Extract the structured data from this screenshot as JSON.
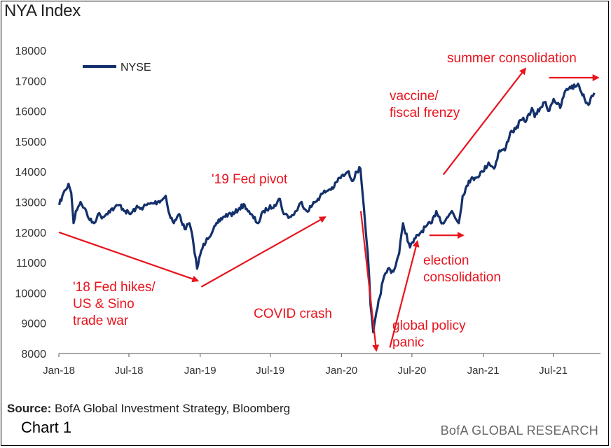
{
  "page": {
    "title": "NYA Index",
    "source_label": "Source:",
    "source_text": "BofA Global Investment Strategy, Bloomberg",
    "chart_number": "Chart 1",
    "brand": "BofA GLOBAL RESEARCH"
  },
  "chart_data": {
    "type": "line",
    "title": "NYA Index",
    "xlabel": "",
    "ylabel": "",
    "ylim": [
      8000,
      18000
    ],
    "xlim": [
      "2018-01-01",
      "2021-10-31"
    ],
    "yticks": [
      8000,
      9000,
      10000,
      11000,
      12000,
      13000,
      14000,
      15000,
      16000,
      17000,
      18000
    ],
    "xticks": [
      {
        "date": "2018-01-01",
        "label": "Jan-18"
      },
      {
        "date": "2018-07-01",
        "label": "Jul-18"
      },
      {
        "date": "2019-01-01",
        "label": "Jan-19"
      },
      {
        "date": "2019-07-01",
        "label": "Jul-19"
      },
      {
        "date": "2020-01-01",
        "label": "Jan-20"
      },
      {
        "date": "2020-07-01",
        "label": "Jul-20"
      },
      {
        "date": "2021-01-01",
        "label": "Jan-21"
      },
      {
        "date": "2021-07-01",
        "label": "Jul-21"
      }
    ],
    "grid": false,
    "legend": {
      "position": "top-left",
      "entries": [
        "NYSE"
      ]
    },
    "colors": {
      "line": "#14306b",
      "annotation": "#e8141e"
    },
    "series": [
      {
        "name": "NYSE",
        "points": [
          [
            "2018-01-02",
            12900
          ],
          [
            "2018-01-10",
            13200
          ],
          [
            "2018-01-19",
            13400
          ],
          [
            "2018-01-26",
            13600
          ],
          [
            "2018-02-02",
            13300
          ],
          [
            "2018-02-08",
            12300
          ],
          [
            "2018-02-14",
            12700
          ],
          [
            "2018-02-26",
            13000
          ],
          [
            "2018-03-08",
            12800
          ],
          [
            "2018-03-22",
            12400
          ],
          [
            "2018-04-02",
            12300
          ],
          [
            "2018-04-12",
            12600
          ],
          [
            "2018-04-25",
            12500
          ],
          [
            "2018-05-10",
            12700
          ],
          [
            "2018-05-24",
            12800
          ],
          [
            "2018-06-07",
            12900
          ],
          [
            "2018-06-21",
            12700
          ],
          [
            "2018-07-05",
            12600
          ],
          [
            "2018-07-19",
            12800
          ],
          [
            "2018-08-02",
            12800
          ],
          [
            "2018-08-16",
            12900
          ],
          [
            "2018-08-30",
            12950
          ],
          [
            "2018-09-13",
            13000
          ],
          [
            "2018-09-27",
            13100
          ],
          [
            "2018-10-04",
            13200
          ],
          [
            "2018-10-11",
            12700
          ],
          [
            "2018-10-25",
            12300
          ],
          [
            "2018-11-08",
            12600
          ],
          [
            "2018-11-22",
            12100
          ],
          [
            "2018-12-04",
            12300
          ],
          [
            "2018-12-14",
            11700
          ],
          [
            "2018-12-24",
            10800
          ],
          [
            "2019-01-04",
            11400
          ],
          [
            "2019-01-18",
            11800
          ],
          [
            "2019-02-01",
            12000
          ],
          [
            "2019-02-15",
            12300
          ],
          [
            "2019-03-01",
            12500
          ],
          [
            "2019-03-15",
            12600
          ],
          [
            "2019-03-29",
            12600
          ],
          [
            "2019-04-12",
            12800
          ],
          [
            "2019-04-26",
            12900
          ],
          [
            "2019-05-10",
            12600
          ],
          [
            "2019-05-31",
            12300
          ],
          [
            "2019-06-14",
            12700
          ],
          [
            "2019-06-28",
            12800
          ],
          [
            "2019-07-12",
            12900
          ],
          [
            "2019-07-26",
            13100
          ],
          [
            "2019-08-05",
            12600
          ],
          [
            "2019-08-23",
            12500
          ],
          [
            "2019-09-06",
            12700
          ],
          [
            "2019-09-20",
            13000
          ],
          [
            "2019-10-03",
            12700
          ],
          [
            "2019-10-18",
            12900
          ],
          [
            "2019-11-01",
            13100
          ],
          [
            "2019-11-15",
            13300
          ],
          [
            "2019-11-29",
            13400
          ],
          [
            "2019-12-13",
            13500
          ],
          [
            "2019-12-27",
            13800
          ],
          [
            "2020-01-10",
            13900
          ],
          [
            "2020-01-17",
            14000
          ],
          [
            "2020-01-31",
            13700
          ],
          [
            "2020-02-07",
            14000
          ],
          [
            "2020-02-19",
            14100
          ],
          [
            "2020-02-28",
            12800
          ],
          [
            "2020-03-09",
            11300
          ],
          [
            "2020-03-16",
            9600
          ],
          [
            "2020-03-23",
            8700
          ],
          [
            "2020-04-03",
            9500
          ],
          [
            "2020-04-17",
            10400
          ],
          [
            "2020-04-30",
            10800
          ],
          [
            "2020-05-14",
            10700
          ],
          [
            "2020-05-29",
            11300
          ],
          [
            "2020-06-08",
            12300
          ],
          [
            "2020-06-26",
            11500
          ],
          [
            "2020-07-10",
            11800
          ],
          [
            "2020-07-24",
            12000
          ],
          [
            "2020-08-07",
            12200
          ],
          [
            "2020-08-21",
            12300
          ],
          [
            "2020-09-02",
            12700
          ],
          [
            "2020-09-18",
            12300
          ],
          [
            "2020-10-02",
            12500
          ],
          [
            "2020-10-12",
            12700
          ],
          [
            "2020-10-30",
            12300
          ],
          [
            "2020-11-09",
            13200
          ],
          [
            "2020-11-25",
            13700
          ],
          [
            "2020-12-11",
            13800
          ],
          [
            "2020-12-31",
            14000
          ],
          [
            "2021-01-15",
            14300
          ],
          [
            "2021-01-29",
            14100
          ],
          [
            "2021-02-12",
            14700
          ],
          [
            "2021-02-26",
            14700
          ],
          [
            "2021-03-12",
            15300
          ],
          [
            "2021-03-26",
            15400
          ],
          [
            "2021-04-09",
            15700
          ],
          [
            "2021-04-23",
            15700
          ],
          [
            "2021-05-07",
            16100
          ],
          [
            "2021-05-14",
            15800
          ],
          [
            "2021-05-28",
            16100
          ],
          [
            "2021-06-11",
            16300
          ],
          [
            "2021-06-18",
            16000
          ],
          [
            "2021-07-02",
            16400
          ],
          [
            "2021-07-19",
            16100
          ],
          [
            "2021-07-30",
            16600
          ],
          [
            "2021-08-13",
            16800
          ],
          [
            "2021-08-27",
            16800
          ],
          [
            "2021-09-03",
            16900
          ],
          [
            "2021-09-20",
            16400
          ],
          [
            "2021-09-30",
            16200
          ],
          [
            "2021-10-08",
            16500
          ],
          [
            "2021-10-15",
            16600
          ]
        ]
      }
    ],
    "annotations": [
      {
        "text": [
          "'18 Fed hikes/",
          "US & Sino",
          "trade war"
        ],
        "arrow": {
          "from": [
            "2018-01-01",
            12000
          ],
          "to": [
            "2018-12-26",
            10400
          ]
        }
      },
      {
        "text": [
          "'19 Fed pivot"
        ],
        "arrow": {
          "from": [
            "2019-01-04",
            10200
          ],
          "to": [
            "2019-11-20",
            12500
          ]
        }
      },
      {
        "text": [
          "COVID crash"
        ],
        "arrow": {
          "from": [
            "2020-02-20",
            12700
          ],
          "to": [
            "2020-03-31",
            8100
          ]
        }
      },
      {
        "text": [
          "global policy",
          "panic"
        ],
        "arrow": {
          "from": [
            "2020-05-05",
            8200
          ],
          "to": [
            "2020-07-15",
            11700
          ]
        }
      },
      {
        "text": [
          "election",
          "consolidation"
        ],
        "arrow": {
          "from": [
            "2020-08-15",
            11900
          ],
          "to": [
            "2020-11-10",
            11900
          ]
        }
      },
      {
        "text": [
          "vaccine/",
          "fiscal frenzy"
        ],
        "arrow": {
          "from": [
            "2020-09-20",
            13900
          ],
          "to": [
            "2021-04-20",
            17400
          ]
        }
      },
      {
        "text": [
          "summer consolidation"
        ],
        "arrow": {
          "from": [
            "2021-06-20",
            17100
          ],
          "to": [
            "2021-10-25",
            17100
          ]
        }
      }
    ]
  }
}
